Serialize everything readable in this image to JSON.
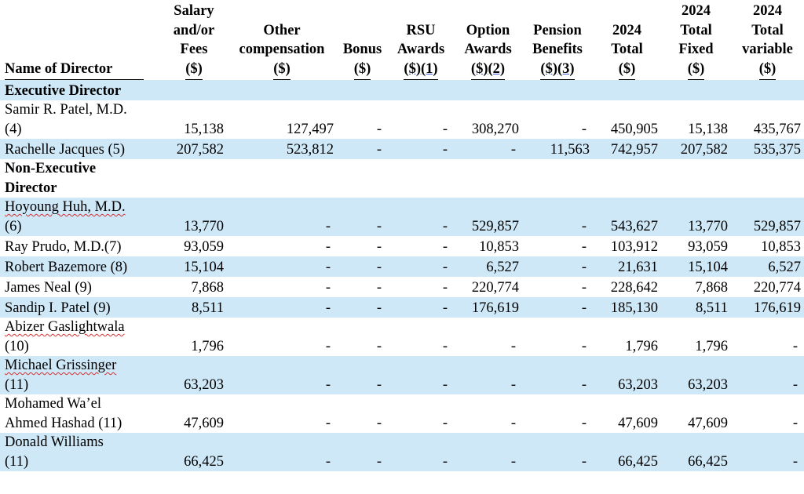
{
  "headers": {
    "name": "Name of Director",
    "salary": [
      "Salary",
      "and/or",
      "Fees",
      "($)"
    ],
    "other": [
      "Other",
      "compensation",
      "($)"
    ],
    "bonus": [
      "Bonus",
      "($)"
    ],
    "rsu": [
      "RSU",
      "Awards",
      "($)(1)"
    ],
    "option": [
      "Option",
      "Awards",
      "($)(2)"
    ],
    "pension": [
      "Pension",
      "Benefits",
      "($)(3)"
    ],
    "total": [
      "2024",
      "Total",
      "($)"
    ],
    "fixed": [
      "2024",
      "Total",
      "Fixed",
      "($)"
    ],
    "variable": [
      "2024",
      "Total",
      "variable",
      "($)"
    ]
  },
  "sections": {
    "executive": "Executive Director",
    "non_executive_1": "Non-Executive",
    "non_executive_2": "Director"
  },
  "rows": [
    {
      "name1": "Samir R. Patel, M.D.",
      "name2": "(4)",
      "salary": "15,138",
      "other": "127,497",
      "bonus": "-",
      "rsu": "-",
      "option": "308,270",
      "pension": "-",
      "total": "450,905",
      "fixed": "15,138",
      "variable": "435,767"
    },
    {
      "name1": "Rachelle Jacques (5)",
      "salary": "207,582",
      "other": "523,812",
      "bonus": "-",
      "rsu": "-",
      "option": "-",
      "pension": "11,563",
      "total": "742,957",
      "fixed": "207,582",
      "variable": "535,375"
    },
    {
      "name1": "Hoyoung Huh, M.D.",
      "name2": "(6)",
      "salary": "13,770",
      "other": "-",
      "bonus": "-",
      "rsu": "-",
      "option": "529,857",
      "pension": "-",
      "total": "543,627",
      "fixed": "13,770",
      "variable": "529,857"
    },
    {
      "name1": "Ray Prudo, M.D.(7)",
      "salary": "93,059",
      "other": "-",
      "bonus": "-",
      "rsu": "-",
      "option": "10,853",
      "pension": "-",
      "total": "103,912",
      "fixed": "93,059",
      "variable": "10,853"
    },
    {
      "name1": "Robert Bazemore (8)",
      "salary": "15,104",
      "other": "-",
      "bonus": "-",
      "rsu": "-",
      "option": "6,527",
      "pension": "-",
      "total": "21,631",
      "fixed": "15,104",
      "variable": "6,527"
    },
    {
      "name1": "James Neal (9)",
      "salary": "7,868",
      "other": "-",
      "bonus": "-",
      "rsu": "-",
      "option": "220,774",
      "pension": "-",
      "total": "228,642",
      "fixed": "7,868",
      "variable": "220,774"
    },
    {
      "name1": "Sandip I. Patel (9)",
      "salary": "8,511",
      "other": "-",
      "bonus": "-",
      "rsu": "-",
      "option": "176,619",
      "pension": "-",
      "total": "185,130",
      "fixed": "8,511",
      "variable": "176,619"
    },
    {
      "name1": "Abizer Gaslightwala",
      "name2": "(10)",
      "salary": "1,796",
      "other": "-",
      "bonus": "-",
      "rsu": "-",
      "option": "-",
      "pension": "-",
      "total": "1,796",
      "fixed": "1,796",
      "variable": "-"
    },
    {
      "name1": "Michael Grissinger",
      "name2": "(11)",
      "salary": "63,203",
      "other": "-",
      "bonus": "-",
      "rsu": "-",
      "option": "-",
      "pension": "-",
      "total": "63,203",
      "fixed": "63,203",
      "variable": "-"
    },
    {
      "name1": "Mohamed Wa’el",
      "name2": "Ahmed Hashad (11)",
      "salary": "47,609",
      "other": "-",
      "bonus": "-",
      "rsu": "-",
      "option": "-",
      "pension": "-",
      "total": "47,609",
      "fixed": "47,609",
      "variable": "-"
    },
    {
      "name1": "Donald Williams",
      "name2": "(11)",
      "salary": "66,425",
      "other": "-",
      "bonus": "-",
      "rsu": "-",
      "option": "-",
      "pension": "-",
      "total": "66,425",
      "fixed": "66,425",
      "variable": "-"
    }
  ]
}
